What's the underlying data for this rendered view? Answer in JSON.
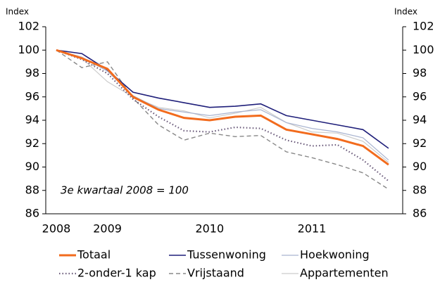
{
  "chart_data": {
    "type": "line",
    "ylabel": "Index",
    "y2label": "Index",
    "annotation": "3e kwartaal 2008 = 100",
    "categories": [
      "2008",
      null,
      "2009",
      null,
      null,
      null,
      "2010",
      null,
      null,
      null,
      "2011",
      null,
      null,
      null
    ],
    "series": [
      {
        "name": "Totaal",
        "color": "#f26b1d",
        "dash": "solid",
        "width": 3,
        "values": [
          100,
          99.3,
          98.4,
          96.0,
          94.9,
          94.2,
          94.0,
          94.3,
          94.4,
          93.2,
          92.8,
          92.4,
          91.8,
          90.2
        ]
      },
      {
        "name": "Tussenwoning",
        "color": "#1f1f7a",
        "dash": "solid",
        "width": 1.6,
        "values": [
          100,
          99.7,
          98.3,
          96.4,
          95.9,
          95.5,
          95.1,
          95.2,
          95.4,
          94.4,
          94.0,
          93.6,
          93.2,
          91.6
        ]
      },
      {
        "name": "Hoekwoning",
        "color": "#a9b4d0",
        "dash": "solid",
        "width": 1.2,
        "values": [
          100,
          99.4,
          98.2,
          96.1,
          95.0,
          94.7,
          94.4,
          94.7,
          94.9,
          93.8,
          93.3,
          93.0,
          92.5,
          90.6
        ]
      },
      {
        "name": "2-onder-1 kap",
        "color": "#6b5b7b",
        "dash": "dotted",
        "width": 2.2,
        "values": [
          100,
          99.2,
          98.0,
          95.8,
          94.3,
          93.1,
          93.0,
          93.4,
          93.3,
          92.3,
          91.8,
          91.9,
          90.6,
          88.8
        ]
      },
      {
        "name": "Vrijstaand",
        "color": "#888888",
        "dash": "dashed",
        "width": 1.4,
        "values": [
          100,
          98.5,
          99.0,
          95.9,
          93.6,
          92.3,
          92.9,
          92.6,
          92.7,
          91.3,
          90.8,
          90.2,
          89.5,
          88.1
        ]
      },
      {
        "name": "Appartementen",
        "color": "#cccccc",
        "dash": "solid",
        "width": 1.2,
        "values": [
          100,
          99.3,
          97.3,
          96.0,
          95.1,
          94.8,
          94.2,
          94.6,
          95.1,
          93.8,
          93.0,
          92.9,
          92.2,
          90.4
        ]
      }
    ],
    "ylim": [
      86,
      102
    ],
    "yticks": [
      86,
      88,
      90,
      92,
      94,
      96,
      98,
      100,
      102
    ],
    "y2lim": [
      86,
      102
    ],
    "y2ticks": [
      86,
      88,
      90,
      92,
      94,
      96,
      98,
      100,
      102
    ]
  }
}
